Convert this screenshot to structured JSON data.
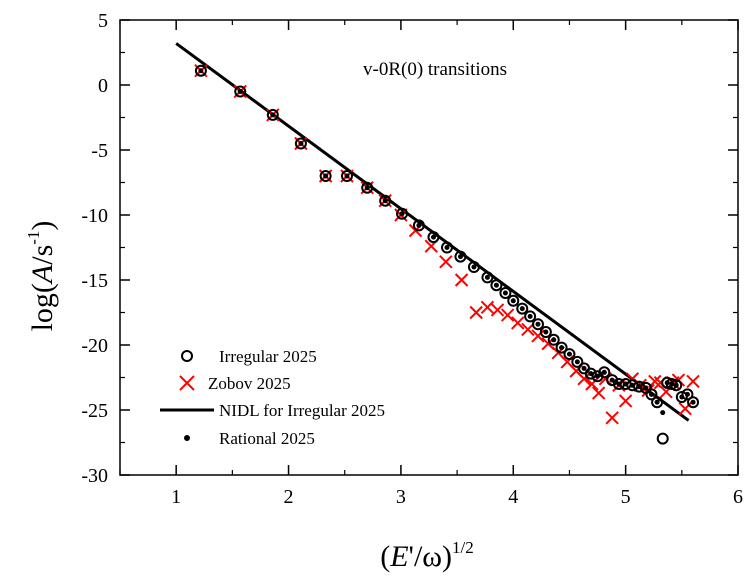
{
  "chart_data": {
    "type": "scatter",
    "annotation": "v-0R(0) transitions",
    "xlabel": {
      "open": "(",
      "var": "E",
      "mid": "'/ω)",
      "sup": "1/2"
    },
    "ylabel": {
      "pre": "log(",
      "var": "A",
      "mid": "/s",
      "sup": "-1",
      "post": ")"
    },
    "xlim": [
      0.5,
      6
    ],
    "ylim": [
      -30,
      5
    ],
    "xticks": [
      1,
      2,
      3,
      4,
      5,
      6
    ],
    "yticks": [
      5,
      0,
      -5,
      -10,
      -15,
      -20,
      -25,
      -30
    ],
    "grid": false,
    "legend_position": "bottom-left",
    "colors": {
      "irregular": "#000000",
      "zobov": "#ff0000",
      "nidl": "#000000",
      "rational": "#000000"
    },
    "series": [
      {
        "name": "Irregular 2025",
        "marker": "open-circle",
        "x": [
          1.22,
          1.57,
          1.86,
          2.11,
          2.33,
          2.52,
          2.7,
          2.86,
          3.01,
          3.16,
          3.29,
          3.41,
          3.53,
          3.65,
          3.77,
          3.85,
          3.93,
          4.0,
          4.08,
          4.15,
          4.22,
          4.29,
          4.36,
          4.43,
          4.5,
          4.57,
          4.63,
          4.69,
          4.75,
          4.81,
          4.88,
          4.94,
          5.0,
          5.06,
          5.12,
          5.18,
          5.23,
          5.28,
          5.33,
          5.37,
          5.41,
          5.45,
          5.5,
          5.55,
          5.6
        ],
        "y": [
          1.1,
          -0.5,
          -2.3,
          -4.5,
          -7.0,
          -7.0,
          -7.9,
          -8.9,
          -9.9,
          -10.8,
          -11.7,
          -12.5,
          -13.2,
          -14.0,
          -14.8,
          -15.4,
          -16.0,
          -16.6,
          -17.2,
          -17.8,
          -18.4,
          -19.0,
          -19.6,
          -20.2,
          -20.7,
          -21.3,
          -21.8,
          -22.2,
          -22.4,
          -22.1,
          -22.7,
          -23.0,
          -23.0,
          -23.1,
          -23.2,
          -23.3,
          -23.8,
          -24.4,
          -27.2,
          -22.9,
          -23.0,
          -23.1,
          -24.0,
          -23.8,
          -24.4
        ]
      },
      {
        "name": "Zobov 2025",
        "marker": "x",
        "x": [
          1.22,
          1.57,
          1.86,
          2.11,
          2.33,
          2.52,
          2.7,
          2.86,
          3.0,
          3.13,
          3.27,
          3.4,
          3.54,
          3.67,
          3.77,
          3.86,
          3.95,
          4.04,
          4.13,
          4.22,
          4.31,
          4.4,
          4.48,
          4.56,
          4.63,
          4.7,
          4.76,
          4.82,
          4.88,
          4.94,
          5.0,
          5.06,
          5.13,
          5.2,
          5.26,
          5.31,
          5.36,
          5.42,
          5.47,
          5.53,
          5.6
        ],
        "y": [
          1.1,
          -0.5,
          -2.3,
          -4.5,
          -7.0,
          -7.0,
          -7.9,
          -8.9,
          -10.0,
          -11.2,
          -12.4,
          -13.6,
          -15.0,
          -17.5,
          -17.1,
          -17.3,
          -17.7,
          -18.3,
          -18.8,
          -19.3,
          -19.9,
          -20.6,
          -21.3,
          -22.0,
          -22.6,
          -23.0,
          -23.7,
          -22.6,
          -25.6,
          -23.1,
          -24.3,
          -22.6,
          -23.1,
          -23.5,
          -22.8,
          -22.9,
          -23.6,
          -22.9,
          -22.7,
          -24.9,
          -22.8
        ]
      },
      {
        "name": "NIDL for Irregular 2025",
        "marker": "line",
        "x": [
          1.0,
          5.56
        ],
        "y": [
          3.2,
          -25.8
        ]
      },
      {
        "name": "Rational 2025",
        "marker": "dot",
        "x": [
          1.22,
          1.57,
          1.86,
          2.11,
          2.33,
          2.52,
          2.7,
          2.86,
          3.01,
          3.16,
          3.29,
          3.41,
          3.53,
          3.65,
          3.77,
          3.85,
          3.93,
          4.0,
          4.08,
          4.15,
          4.22,
          4.29,
          4.36,
          4.43,
          4.5,
          4.57,
          4.63,
          4.69,
          4.75,
          4.81,
          4.88,
          4.94,
          5.0,
          5.06,
          5.12,
          5.18,
          5.23,
          5.28,
          5.33,
          5.37,
          5.41,
          5.45,
          5.5,
          5.55,
          5.6
        ],
        "y": [
          1.1,
          -0.5,
          -2.3,
          -4.5,
          -7.0,
          -7.0,
          -7.9,
          -8.9,
          -9.9,
          -10.8,
          -11.7,
          -12.5,
          -13.2,
          -14.0,
          -14.8,
          -15.4,
          -16.0,
          -16.6,
          -17.2,
          -17.8,
          -18.4,
          -19.0,
          -19.6,
          -20.2,
          -20.7,
          -21.3,
          -21.8,
          -22.2,
          -22.4,
          -22.1,
          -22.7,
          -23.0,
          -23.0,
          -23.1,
          -23.2,
          -23.3,
          -23.8,
          -24.4,
          -25.2,
          -22.9,
          -23.0,
          -23.1,
          -24.0,
          -23.8,
          -24.4
        ]
      }
    ]
  }
}
